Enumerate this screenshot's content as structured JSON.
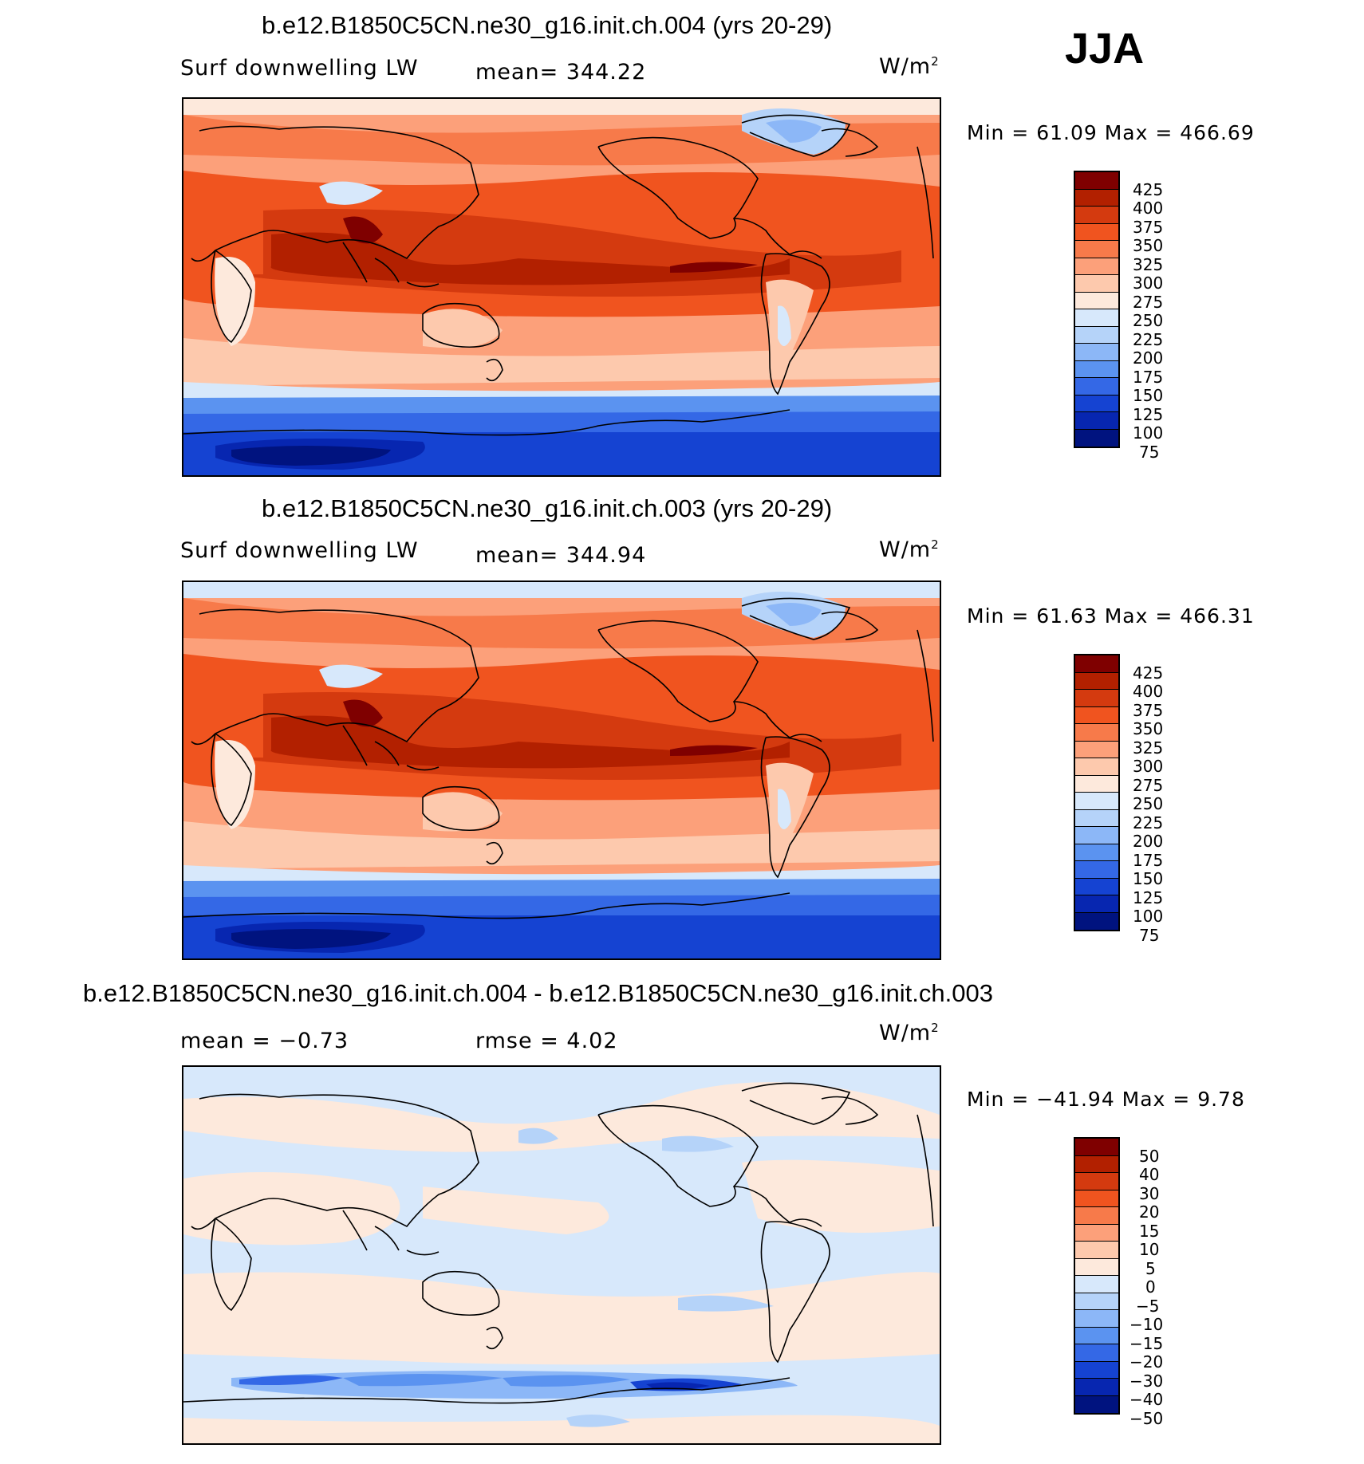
{
  "season": "JJA",
  "chart_data": [
    {
      "type": "heatmap",
      "title": "b.e12.B1850C5CN.ne30_g16.init.ch.004 (yrs 20-29)",
      "variable": "Surf downwelling LW",
      "stat": "mean= 344.22",
      "units": "W/m",
      "units_sup": "2",
      "minmax": "Min =   61.09  Max  =  466.69",
      "min": 61.09,
      "max": 466.69,
      "mean": 344.22,
      "colorbar": {
        "levels": [
          "425",
          "400",
          "375",
          "350",
          "325",
          "300",
          "275",
          "250",
          "225",
          "200",
          "175",
          "150",
          "125",
          "100",
          "75"
        ],
        "colors": [
          "#7f0000",
          "#b22000",
          "#d43a0f",
          "#f0541f",
          "#f77a4a",
          "#fca07a",
          "#fdc9ad",
          "#fde9dc",
          "#d7e8fb",
          "#b5d3f9",
          "#8cb7f7",
          "#5b93f0",
          "#3468e6",
          "#1543d2",
          "#0726b0",
          "#00137f"
        ]
      }
    },
    {
      "type": "heatmap",
      "title": "b.e12.B1850C5CN.ne30_g16.init.ch.003 (yrs 20-29)",
      "variable": "Surf downwelling LW",
      "stat": "mean= 344.94",
      "units": "W/m",
      "units_sup": "2",
      "minmax": "Min =   61.63  Max  =  466.31",
      "min": 61.63,
      "max": 466.31,
      "mean": 344.94,
      "colorbar": {
        "levels": [
          "425",
          "400",
          "375",
          "350",
          "325",
          "300",
          "275",
          "250",
          "225",
          "200",
          "175",
          "150",
          "125",
          "100",
          "75"
        ],
        "colors": [
          "#7f0000",
          "#b22000",
          "#d43a0f",
          "#f0541f",
          "#f77a4a",
          "#fca07a",
          "#fdc9ad",
          "#fde9dc",
          "#d7e8fb",
          "#b5d3f9",
          "#8cb7f7",
          "#5b93f0",
          "#3468e6",
          "#1543d2",
          "#0726b0",
          "#00137f"
        ]
      }
    },
    {
      "type": "heatmap",
      "title": "b.e12.B1850C5CN.ne30_g16.init.ch.004 - b.e12.B1850C5CN.ne30_g16.init.ch.003",
      "stat_mean": "mean =   −0.73",
      "stat_rmse": "rmse =     4.02",
      "units": "W/m",
      "units_sup": "2",
      "minmax": "Min = −41.94  Max  =     9.78",
      "min": -41.94,
      "max": 9.78,
      "mean": -0.73,
      "rmse": 4.02,
      "colorbar": {
        "levels": [
          "50",
          "40",
          "30",
          "20",
          "15",
          "10",
          "5",
          "0",
          "−5",
          "−10",
          "−15",
          "−20",
          "−30",
          "−40",
          "−50"
        ],
        "colors": [
          "#7f0000",
          "#b22000",
          "#d43a0f",
          "#f0541f",
          "#f77a4a",
          "#fca07a",
          "#fdc9ad",
          "#fde9dc",
          "#d7e8fb",
          "#b5d3f9",
          "#8cb7f7",
          "#5b93f0",
          "#3468e6",
          "#1543d2",
          "#0726b0",
          "#00137f"
        ]
      }
    }
  ]
}
